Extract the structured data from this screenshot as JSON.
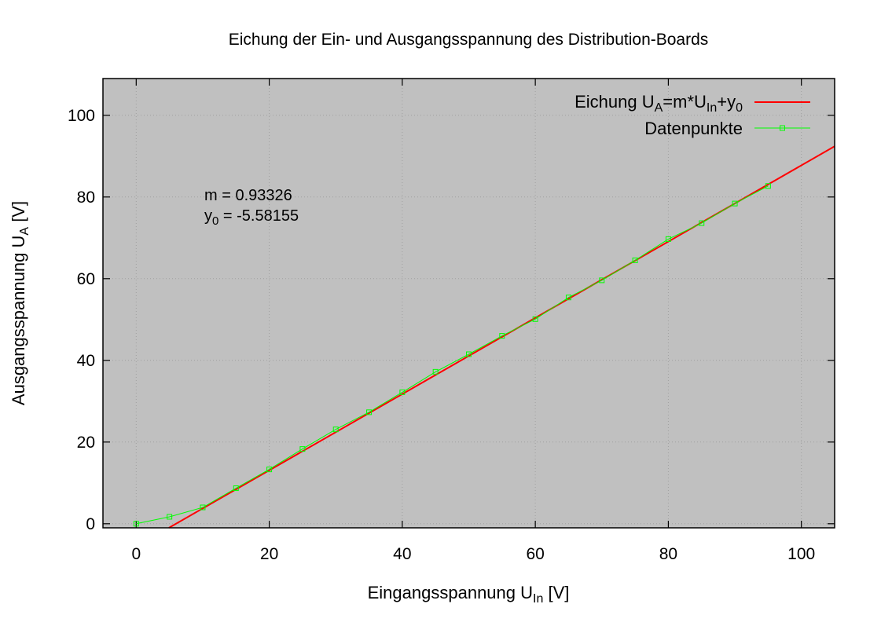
{
  "chart_data": {
    "type": "line",
    "title": "Eichung der Ein- und Ausgangsspannung des Distribution-Boards",
    "xlabel": {
      "main": "Eingangsspannung U",
      "sub": "In",
      "unit": " [V]"
    },
    "ylabel": {
      "main": "Ausgangsspannung U",
      "sub": "A",
      "unit": " [V]"
    },
    "xlim": [
      -5,
      105
    ],
    "ylim": [
      -1,
      109
    ],
    "xticks": [
      0,
      20,
      40,
      60,
      80,
      100
    ],
    "yticks": [
      0,
      20,
      40,
      60,
      80,
      100
    ],
    "grid": true,
    "legend_position": "top-right",
    "legend": {
      "fit": {
        "parts": [
          "Eichung U",
          "A",
          "=m*U",
          "In",
          "+y",
          "0"
        ]
      },
      "data": "Datenpunkte"
    },
    "annotations": {
      "m_line": "m = 0.93326",
      "y0_line": {
        "main": "y",
        "sub": "0",
        "rest": " = -5.58155"
      }
    },
    "fit": {
      "m": 0.93326,
      "y0": -5.58155,
      "color": "#ff0000"
    },
    "series": [
      {
        "color": "#00ff00",
        "x": [
          0,
          5,
          10,
          15,
          20,
          25,
          30,
          35,
          40,
          45,
          50,
          55,
          60,
          65,
          70,
          75,
          80,
          85,
          90,
          95
        ],
        "y": [
          0.0,
          1.7,
          4.0,
          8.7,
          13.3,
          18.3,
          23.1,
          27.3,
          32.2,
          37.2,
          41.5,
          46.0,
          50.1,
          55.4,
          59.6,
          64.5,
          69.7,
          73.6,
          78.4,
          82.7
        ]
      }
    ],
    "colors": {
      "background": "#c0c0c0",
      "grid": "#a0a0a0",
      "frame": "#000000"
    }
  }
}
